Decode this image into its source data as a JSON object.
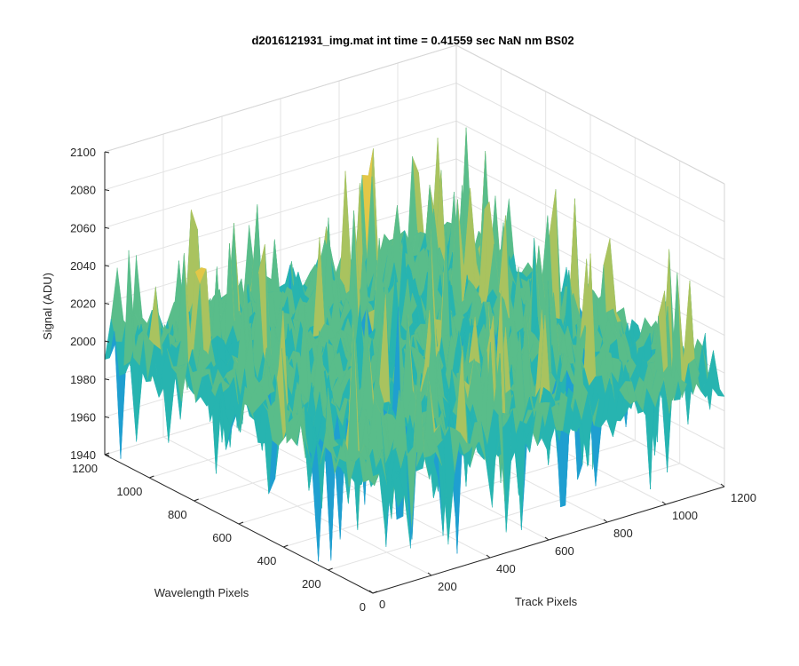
{
  "chart_data": {
    "type": "surface",
    "title": "d2016121931_img.mat int time = 0.41559 sec  NaN nm BS02",
    "xlabel": "Track Pixels",
    "ylabel": "Wavelength Pixels",
    "zlabel": "Signal (ADU)",
    "xlim": [
      0,
      1200
    ],
    "ylim": [
      0,
      1200
    ],
    "zlim": [
      1940,
      2100
    ],
    "x_ticks": [
      "0",
      "200",
      "400",
      "600",
      "800",
      "1000",
      "1200"
    ],
    "y_ticks": [
      "0",
      "200",
      "400",
      "600",
      "800",
      "1000",
      "1200"
    ],
    "z_ticks": [
      "1940",
      "1960",
      "1980",
      "2000",
      "2020",
      "2040",
      "2060",
      "2080",
      "2100"
    ],
    "surface_mean": 2000,
    "surface_range": [
      1935,
      2070
    ],
    "grid": true,
    "colormap": [
      "#0072BD",
      "#1f9fd0",
      "#27b4b0",
      "#59bd8a",
      "#a9c35f",
      "#e3c747"
    ]
  }
}
